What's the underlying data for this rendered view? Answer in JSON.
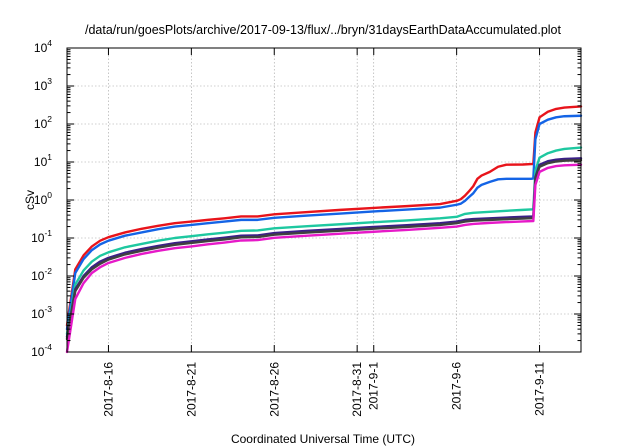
{
  "chart_data": {
    "type": "line",
    "title": "/data/run/goesPlots/archive/2017-09-13/flux/../bryn/31daysEarthDataAccumulated.plot",
    "xlabel": "Coordinated Universal Time (UTC)",
    "ylabel": "cSv",
    "y_scale": "log",
    "ylim": [
      0.0001,
      10000
    ],
    "y_ticks": [
      {
        "value": 0.0001,
        "base": "10",
        "exp": "-4"
      },
      {
        "value": 0.001,
        "base": "10",
        "exp": "-3"
      },
      {
        "value": 0.01,
        "base": "10",
        "exp": "-2"
      },
      {
        "value": 0.1,
        "base": "10",
        "exp": "-1"
      },
      {
        "value": 1,
        "base": "10",
        "exp": "0"
      },
      {
        "value": 10,
        "base": "10",
        "exp": "1"
      },
      {
        "value": 100,
        "base": "10",
        "exp": "2"
      },
      {
        "value": 1000,
        "base": "10",
        "exp": "3"
      },
      {
        "value": 10000,
        "base": "10",
        "exp": "4"
      }
    ],
    "xlim": [
      "2017-08-13T12:00",
      "2017-09-13T12:00"
    ],
    "x_ticks": [
      {
        "date": "2017-08-16",
        "label": "2017-8-16"
      },
      {
        "date": "2017-08-21",
        "label": "2017-8-21"
      },
      {
        "date": "2017-08-26",
        "label": "2017-8-26"
      },
      {
        "date": "2017-08-31",
        "label": "2017-8-31"
      },
      {
        "date": "2017-09-01",
        "label": "2017-9-1"
      },
      {
        "date": "2017-09-06",
        "label": "2017-9-6"
      },
      {
        "date": "2017-09-11",
        "label": "2017-9-11"
      }
    ],
    "grid": true,
    "legend": "none",
    "series": [
      {
        "color": "#e8141b",
        "x": [
          "2017-08-13T12:00",
          "2017-08-14T00:00",
          "2017-08-14T12:00",
          "2017-08-15T00:00",
          "2017-08-15T12:00",
          "2017-08-16T00:00",
          "2017-08-17T00:00",
          "2017-08-18T00:00",
          "2017-08-19T00:00",
          "2017-08-20T00:00",
          "2017-08-21T00:00",
          "2017-08-22T00:00",
          "2017-08-23T00:00",
          "2017-08-24T00:00",
          "2017-08-25T00:00",
          "2017-08-26T00:00",
          "2017-08-28T00:00",
          "2017-08-30T00:00",
          "2017-09-01T00:00",
          "2017-09-03T00:00",
          "2017-09-05T00:00",
          "2017-09-06T00:00",
          "2017-09-06T06:00",
          "2017-09-06T12:00",
          "2017-09-06T18:00",
          "2017-09-07T00:00",
          "2017-09-07T06:00",
          "2017-09-07T12:00",
          "2017-09-08T00:00",
          "2017-09-08T12:00",
          "2017-09-09T00:00",
          "2017-09-10T00:00",
          "2017-09-10T12:00",
          "2017-09-10T15:00",
          "2017-09-10T18:00",
          "2017-09-11T00:00",
          "2017-09-11T12:00",
          "2017-09-12T00:00",
          "2017-09-12T12:00",
          "2017-09-13T12:00"
        ],
        "y": [
          0.0005,
          0.015,
          0.035,
          0.06,
          0.085,
          0.105,
          0.14,
          0.175,
          0.21,
          0.245,
          0.27,
          0.3,
          0.33,
          0.37,
          0.37,
          0.42,
          0.48,
          0.55,
          0.62,
          0.69,
          0.78,
          0.95,
          1.05,
          1.3,
          1.7,
          2.3,
          3.6,
          4.4,
          5.5,
          7.5,
          8.5,
          8.6,
          8.8,
          8.8,
          60,
          150,
          210,
          250,
          270,
          290
        ]
      },
      {
        "color": "#1464e6",
        "x": [
          "2017-08-13T12:00",
          "2017-08-14T00:00",
          "2017-08-14T12:00",
          "2017-08-15T00:00",
          "2017-08-15T12:00",
          "2017-08-16T00:00",
          "2017-08-17T00:00",
          "2017-08-18T00:00",
          "2017-08-19T00:00",
          "2017-08-20T00:00",
          "2017-08-21T00:00",
          "2017-08-22T00:00",
          "2017-08-23T00:00",
          "2017-08-24T00:00",
          "2017-08-25T00:00",
          "2017-08-26T00:00",
          "2017-08-28T00:00",
          "2017-08-30T00:00",
          "2017-09-01T00:00",
          "2017-09-03T00:00",
          "2017-09-05T00:00",
          "2017-09-06T00:00",
          "2017-09-06T06:00",
          "2017-09-06T12:00",
          "2017-09-06T18:00",
          "2017-09-07T00:00",
          "2017-09-07T06:00",
          "2017-09-07T12:00",
          "2017-09-08T00:00",
          "2017-09-08T12:00",
          "2017-09-09T00:00",
          "2017-09-10T00:00",
          "2017-09-10T12:00",
          "2017-09-10T15:00",
          "2017-09-10T18:00",
          "2017-09-11T00:00",
          "2017-09-11T12:00",
          "2017-09-12T00:00",
          "2017-09-12T12:00",
          "2017-09-13T12:00"
        ],
        "y": [
          0.0004,
          0.012,
          0.028,
          0.048,
          0.068,
          0.085,
          0.115,
          0.14,
          0.17,
          0.2,
          0.22,
          0.245,
          0.27,
          0.3,
          0.3,
          0.34,
          0.39,
          0.44,
          0.5,
          0.56,
          0.63,
          0.75,
          0.8,
          0.95,
          1.2,
          1.5,
          2.1,
          2.5,
          3.0,
          3.5,
          3.6,
          3.6,
          3.6,
          3.7,
          40,
          100,
          130,
          150,
          160,
          165
        ]
      },
      {
        "color": "#1ec8a0",
        "x": [
          "2017-08-13T12:00",
          "2017-08-14T00:00",
          "2017-08-14T12:00",
          "2017-08-15T00:00",
          "2017-08-15T12:00",
          "2017-08-16T00:00",
          "2017-08-17T00:00",
          "2017-08-18T00:00",
          "2017-08-19T00:00",
          "2017-08-20T00:00",
          "2017-08-21T00:00",
          "2017-08-22T00:00",
          "2017-08-23T00:00",
          "2017-08-24T00:00",
          "2017-08-25T00:00",
          "2017-08-26T00:00",
          "2017-08-28T00:00",
          "2017-08-30T00:00",
          "2017-09-01T00:00",
          "2017-09-03T00:00",
          "2017-09-05T00:00",
          "2017-09-06T00:00",
          "2017-09-06T12:00",
          "2017-09-07T00:00",
          "2017-09-08T00:00",
          "2017-09-09T00:00",
          "2017-09-10T00:00",
          "2017-09-10T15:00",
          "2017-09-10T18:00",
          "2017-09-11T00:00",
          "2017-09-11T12:00",
          "2017-09-12T00:00",
          "2017-09-12T12:00",
          "2017-09-13T12:00"
        ],
        "y": [
          0.0003,
          0.006,
          0.014,
          0.024,
          0.034,
          0.042,
          0.057,
          0.07,
          0.085,
          0.1,
          0.112,
          0.125,
          0.138,
          0.155,
          0.158,
          0.18,
          0.205,
          0.23,
          0.26,
          0.29,
          0.33,
          0.36,
          0.43,
          0.46,
          0.49,
          0.52,
          0.55,
          0.57,
          6,
          13,
          17,
          20,
          22,
          24
        ]
      },
      {
        "color": "#3a1f86",
        "x": [
          "2017-08-13T12:00",
          "2017-08-14T00:00",
          "2017-08-14T12:00",
          "2017-08-15T00:00",
          "2017-08-15T12:00",
          "2017-08-16T00:00",
          "2017-08-17T00:00",
          "2017-08-18T00:00",
          "2017-08-19T00:00",
          "2017-08-20T00:00",
          "2017-08-21T00:00",
          "2017-08-22T00:00",
          "2017-08-23T00:00",
          "2017-08-24T00:00",
          "2017-08-25T00:00",
          "2017-08-26T00:00",
          "2017-08-28T00:00",
          "2017-08-30T00:00",
          "2017-09-01T00:00",
          "2017-09-03T00:00",
          "2017-09-05T00:00",
          "2017-09-06T00:00",
          "2017-09-06T12:00",
          "2017-09-07T00:00",
          "2017-09-08T00:00",
          "2017-09-09T00:00",
          "2017-09-10T00:00",
          "2017-09-10T15:00",
          "2017-09-10T18:00",
          "2017-09-11T00:00",
          "2017-09-11T12:00",
          "2017-09-12T00:00",
          "2017-09-12T12:00",
          "2017-09-13T12:00"
        ],
        "y": [
          0.00025,
          0.0045,
          0.01,
          0.017,
          0.024,
          0.03,
          0.041,
          0.051,
          0.062,
          0.073,
          0.082,
          0.092,
          0.102,
          0.115,
          0.117,
          0.135,
          0.154,
          0.173,
          0.195,
          0.217,
          0.245,
          0.27,
          0.3,
          0.315,
          0.33,
          0.345,
          0.36,
          0.37,
          4,
          8.5,
          10.5,
          11.5,
          12,
          12.5
        ]
      },
      {
        "color": "#404040",
        "x": [
          "2017-08-13T12:00",
          "2017-08-14T00:00",
          "2017-08-14T12:00",
          "2017-08-15T00:00",
          "2017-08-15T12:00",
          "2017-08-16T00:00",
          "2017-08-17T00:00",
          "2017-08-18T00:00",
          "2017-08-19T00:00",
          "2017-08-20T00:00",
          "2017-08-21T00:00",
          "2017-08-22T00:00",
          "2017-08-23T00:00",
          "2017-08-24T00:00",
          "2017-08-25T00:00",
          "2017-08-26T00:00",
          "2017-08-28T00:00",
          "2017-08-30T00:00",
          "2017-09-01T00:00",
          "2017-09-03T00:00",
          "2017-09-05T00:00",
          "2017-09-06T00:00",
          "2017-09-06T12:00",
          "2017-09-07T00:00",
          "2017-09-08T00:00",
          "2017-09-09T00:00",
          "2017-09-10T00:00",
          "2017-09-10T15:00",
          "2017-09-10T18:00",
          "2017-09-11T00:00",
          "2017-09-11T12:00",
          "2017-09-12T00:00",
          "2017-09-12T12:00",
          "2017-09-13T12:00"
        ],
        "y": [
          0.00022,
          0.004,
          0.009,
          0.015,
          0.021,
          0.027,
          0.037,
          0.046,
          0.056,
          0.066,
          0.074,
          0.083,
          0.092,
          0.104,
          0.106,
          0.122,
          0.139,
          0.156,
          0.176,
          0.196,
          0.221,
          0.245,
          0.27,
          0.285,
          0.3,
          0.313,
          0.325,
          0.335,
          3.6,
          7.5,
          9.3,
          10.3,
          10.8,
          11.2
        ]
      },
      {
        "color": "#e619c8",
        "x": [
          "2017-08-13T12:00",
          "2017-08-14T00:00",
          "2017-08-14T12:00",
          "2017-08-15T00:00",
          "2017-08-15T12:00",
          "2017-08-16T00:00",
          "2017-08-17T00:00",
          "2017-08-18T00:00",
          "2017-08-19T00:00",
          "2017-08-20T00:00",
          "2017-08-21T00:00",
          "2017-08-22T00:00",
          "2017-08-23T00:00",
          "2017-08-24T00:00",
          "2017-08-25T00:00",
          "2017-08-26T00:00",
          "2017-08-28T00:00",
          "2017-08-30T00:00",
          "2017-09-01T00:00",
          "2017-09-03T00:00",
          "2017-09-05T00:00",
          "2017-09-06T00:00",
          "2017-09-06T12:00",
          "2017-09-07T00:00",
          "2017-09-08T00:00",
          "2017-09-09T00:00",
          "2017-09-10T00:00",
          "2017-09-10T15:00",
          "2017-09-10T18:00",
          "2017-09-11T00:00",
          "2017-09-11T12:00",
          "2017-09-12T00:00",
          "2017-09-12T12:00",
          "2017-09-13T12:00"
        ],
        "y": [
          0.0001,
          0.0025,
          0.0065,
          0.012,
          0.017,
          0.022,
          0.03,
          0.038,
          0.046,
          0.054,
          0.06,
          0.068,
          0.076,
          0.086,
          0.088,
          0.101,
          0.115,
          0.13,
          0.146,
          0.163,
          0.185,
          0.2,
          0.22,
          0.235,
          0.25,
          0.262,
          0.273,
          0.28,
          2.5,
          5.5,
          7,
          7.8,
          8.2,
          8.5
        ]
      }
    ]
  }
}
